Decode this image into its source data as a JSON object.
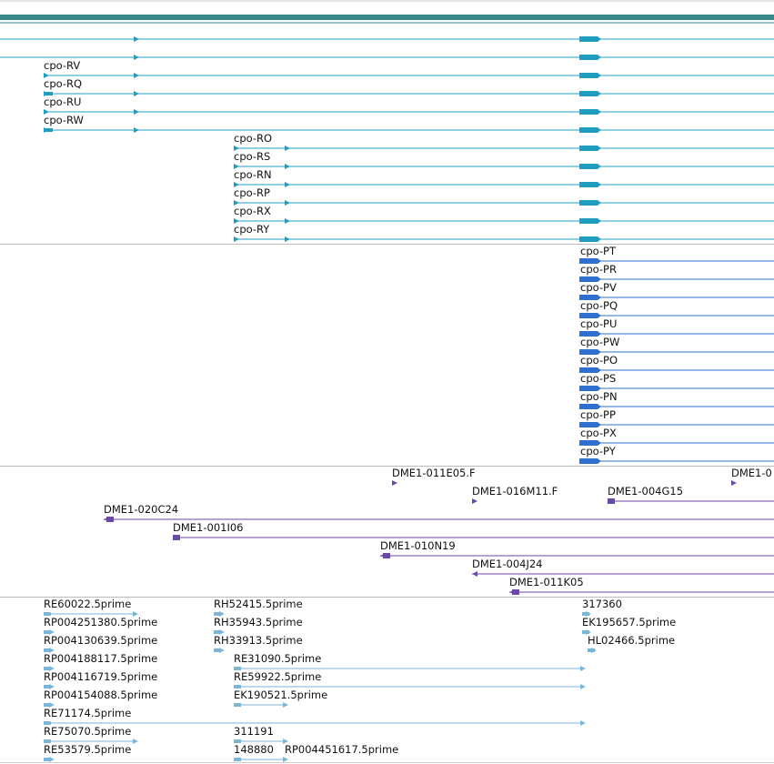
{
  "colors": {
    "top_band": "#3a8a8a",
    "transcript_cpo_r": "#1f9fbf",
    "transcript_cpo_p": "#2f6fd0",
    "clone_track": "#6a4aa8",
    "est_track": "#7ab6d8",
    "separator": "#bbbbbb"
  },
  "tracks": {
    "cpo_r_transcripts": [
      {
        "label": ""
      },
      {
        "label": ""
      },
      {
        "label": "cpo-RV"
      },
      {
        "label": "cpo-RQ"
      },
      {
        "label": "cpo-RU"
      },
      {
        "label": "cpo-RW"
      },
      {
        "label": "cpo-RO"
      },
      {
        "label": "cpo-RS"
      },
      {
        "label": "cpo-RN"
      },
      {
        "label": "cpo-RP"
      },
      {
        "label": "cpo-RX"
      },
      {
        "label": "cpo-RY"
      }
    ],
    "cpo_p_transcripts": [
      {
        "label": "cpo-PT"
      },
      {
        "label": "cpo-PR"
      },
      {
        "label": "cpo-PV"
      },
      {
        "label": "cpo-PQ"
      },
      {
        "label": "cpo-PU"
      },
      {
        "label": "cpo-PW"
      },
      {
        "label": "cpo-PO"
      },
      {
        "label": "cpo-PS"
      },
      {
        "label": "cpo-PN"
      },
      {
        "label": "cpo-PP"
      },
      {
        "label": "cpo-PX"
      },
      {
        "label": "cpo-PY"
      }
    ],
    "bac_clones": [
      {
        "label": "DME1-011E05.F"
      },
      {
        "label": "DME1-0"
      },
      {
        "label": "DME1-016M11.F"
      },
      {
        "label": "DME1-004G15"
      },
      {
        "label": "DME1-020C24"
      },
      {
        "label": "DME1-001I06"
      },
      {
        "label": "DME1-010N19"
      },
      {
        "label": "DME1-004J24"
      },
      {
        "label": "DME1-011K05"
      }
    ],
    "est_alignments": [
      {
        "label": "RE60022.5prime"
      },
      {
        "label": "RP004251380.5prime"
      },
      {
        "label": "RP004130639.5prime"
      },
      {
        "label": "RP004188117.5prime"
      },
      {
        "label": "RP004116719.5prime"
      },
      {
        "label": "RP004154088.5prime"
      },
      {
        "label": "RE71174.5prime"
      },
      {
        "label": "RE75070.5prime"
      },
      {
        "label": "RE53579.5prime"
      },
      {
        "label": "RH52415.5prime"
      },
      {
        "label": "RH35943.5prime"
      },
      {
        "label": "RH33913.5prime"
      },
      {
        "label": "RE31090.5prime"
      },
      {
        "label": "RE59922.5prime"
      },
      {
        "label": "EK190521.5prime"
      },
      {
        "label": "311191"
      },
      {
        "label": "148880"
      },
      {
        "label": "RP004451617.5prime"
      },
      {
        "label": "317360"
      },
      {
        "label": "EK195657.5prime"
      },
      {
        "label": "HL02466.5prime"
      }
    ]
  }
}
